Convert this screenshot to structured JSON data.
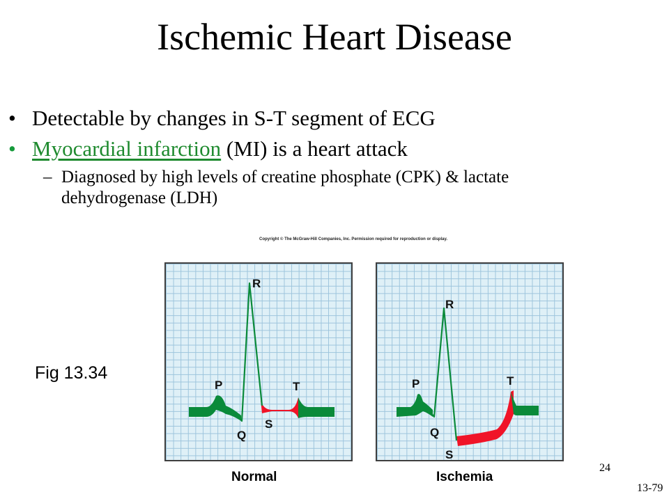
{
  "slide": {
    "title": "Ischemic Heart Disease",
    "bullets": [
      {
        "text": "Detectable by changes in S-T segment of ECG"
      },
      {
        "link_text": "Myocardial infarction",
        "text": " (MI) is a heart attack"
      }
    ],
    "sub_bullet": {
      "dash": "–",
      "line1": "Diagnosed by high levels of creatine phosphate (CPK) & lactate",
      "line2": "dehydrogenase (LDH)"
    },
    "page_number": "24",
    "slide_code": "13-79"
  },
  "figure": {
    "copyright": "Copyright © The McGraw-Hill Companies, Inc. Permission required for reproduction or display.",
    "label": "Fig 13.34",
    "panels": [
      {
        "caption": "Normal",
        "labels": {
          "P": "P",
          "Q": "Q",
          "R": "R",
          "S": "S",
          "T": "T"
        }
      },
      {
        "caption": "Ischemia",
        "labels": {
          "P": "P",
          "Q": "Q",
          "R": "R",
          "S": "S",
          "T": "T"
        }
      }
    ],
    "colors": {
      "waveform": "#0a8a3a",
      "st_segment": "#f01428",
      "grid": "#9cc4dc",
      "grid_bg": "#dff0f7"
    }
  }
}
